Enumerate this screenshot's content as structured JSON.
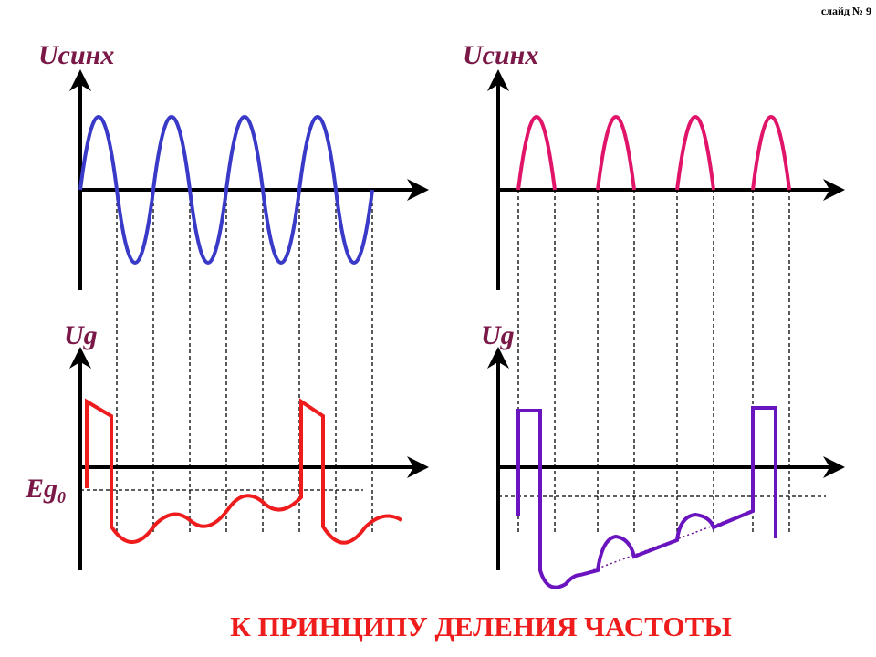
{
  "slide_number": "слайд № 9",
  "labels": {
    "u_sync_left": "Uсинх",
    "u_sync_right": "Uсинх",
    "ug_left": "Ug",
    "ug_right": "Ug",
    "eg0": {
      "main": "Eg",
      "sub": "0"
    }
  },
  "title": "К ПРИНЦИПУ ДЕЛЕНИЯ ЧАСТОТЫ"
}
